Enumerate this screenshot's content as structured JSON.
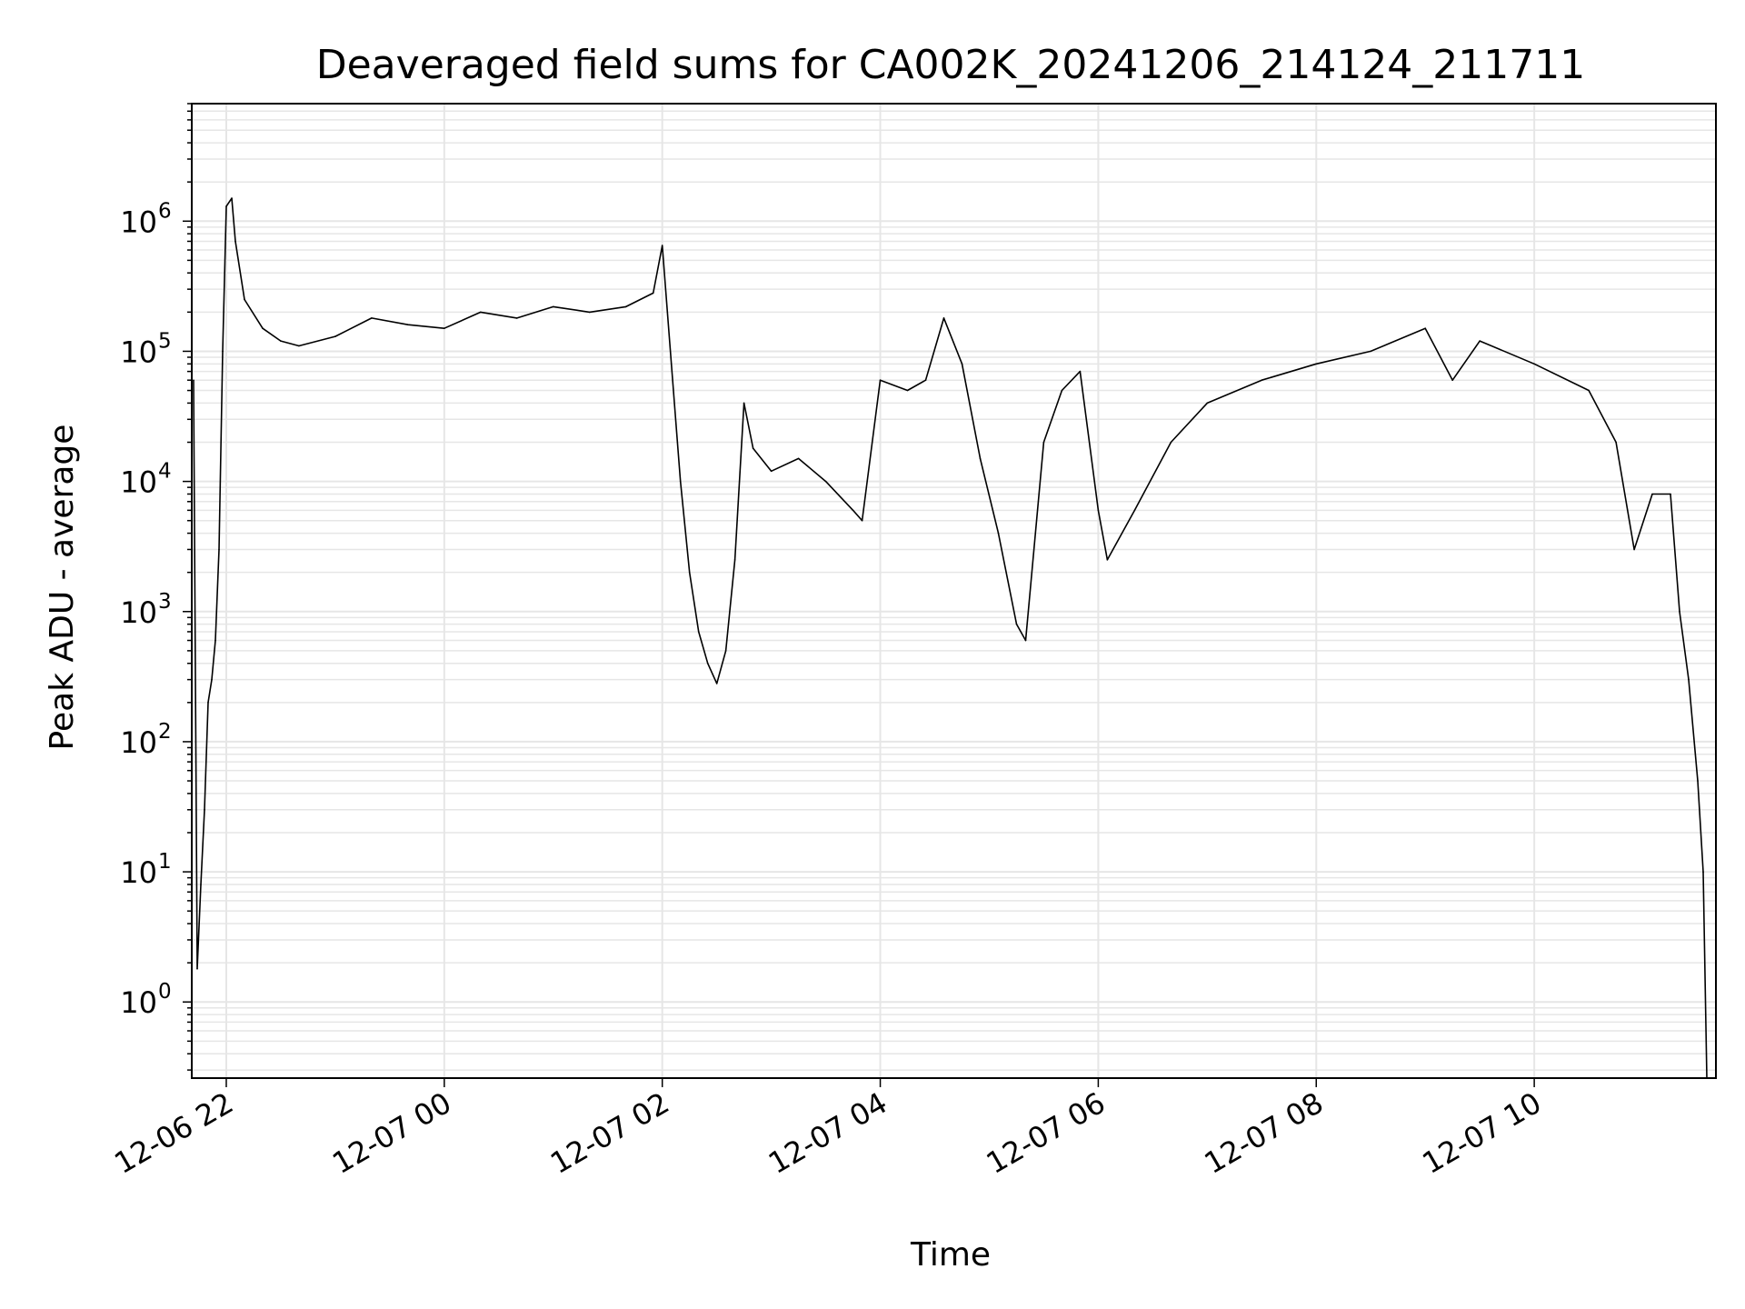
{
  "chart_data": {
    "type": "line",
    "title": "Deaveraged field sums for CA002K_20241206_214124_211711",
    "xlabel": "Time",
    "ylabel": "Peak ADU - average",
    "y_scale": "log",
    "ylim": [
      0.26,
      8000000
    ],
    "xlim": [
      "2024-12-06 21:41",
      "2024-12-07 11:40"
    ],
    "grid": true,
    "x_ticks": [
      "2024-12-06 22:00",
      "2024-12-07 00:00",
      "2024-12-07 02:00",
      "2024-12-07 04:00",
      "2024-12-07 06:00",
      "2024-12-07 08:00",
      "2024-12-07 10:00"
    ],
    "x_tick_labels": [
      "12-06 22",
      "12-07 00",
      "12-07 02",
      "12-07 04",
      "12-07 06",
      "12-07 08",
      "12-07 10"
    ],
    "y_ticks": [
      1,
      10,
      100,
      1000,
      10000,
      100000,
      1000000
    ],
    "y_tick_labels": [
      {
        "base": "10",
        "exp": "0"
      },
      {
        "base": "10",
        "exp": "1"
      },
      {
        "base": "10",
        "exp": "2"
      },
      {
        "base": "10",
        "exp": "3"
      },
      {
        "base": "10",
        "exp": "4"
      },
      {
        "base": "10",
        "exp": "5"
      },
      {
        "base": "10",
        "exp": "6"
      }
    ],
    "series": [
      {
        "color": "#000000",
        "x": [
          "2024-12-06 21:42",
          "2024-12-06 21:44",
          "2024-12-06 21:46",
          "2024-12-06 21:48",
          "2024-12-06 21:50",
          "2024-12-06 21:52",
          "2024-12-06 21:54",
          "2024-12-06 21:56",
          "2024-12-06 21:58",
          "2024-12-06 22:00",
          "2024-12-06 22:03",
          "2024-12-06 22:05",
          "2024-12-06 22:10",
          "2024-12-06 22:20",
          "2024-12-06 22:30",
          "2024-12-06 22:40",
          "2024-12-06 23:00",
          "2024-12-06 23:20",
          "2024-12-06 23:40",
          "2024-12-07 00:00",
          "2024-12-07 00:20",
          "2024-12-07 00:40",
          "2024-12-07 01:00",
          "2024-12-07 01:20",
          "2024-12-07 01:40",
          "2024-12-07 01:55",
          "2024-12-07 02:00",
          "2024-12-07 02:05",
          "2024-12-07 02:10",
          "2024-12-07 02:15",
          "2024-12-07 02:20",
          "2024-12-07 02:25",
          "2024-12-07 02:30",
          "2024-12-07 02:35",
          "2024-12-07 02:40",
          "2024-12-07 02:45",
          "2024-12-07 02:50",
          "2024-12-07 03:00",
          "2024-12-07 03:15",
          "2024-12-07 03:30",
          "2024-12-07 03:45",
          "2024-12-07 03:50",
          "2024-12-07 04:00",
          "2024-12-07 04:15",
          "2024-12-07 04:25",
          "2024-12-07 04:35",
          "2024-12-07 04:45",
          "2024-12-07 04:55",
          "2024-12-07 05:05",
          "2024-12-07 05:15",
          "2024-12-07 05:20",
          "2024-12-07 05:30",
          "2024-12-07 05:40",
          "2024-12-07 05:50",
          "2024-12-07 06:00",
          "2024-12-07 06:05",
          "2024-12-07 06:20",
          "2024-12-07 06:40",
          "2024-12-07 07:00",
          "2024-12-07 07:30",
          "2024-12-07 08:00",
          "2024-12-07 08:30",
          "2024-12-07 09:00",
          "2024-12-07 09:15",
          "2024-12-07 09:30",
          "2024-12-07 10:00",
          "2024-12-07 10:30",
          "2024-12-07 10:45",
          "2024-12-07 10:55",
          "2024-12-07 11:05",
          "2024-12-07 11:15",
          "2024-12-07 11:20",
          "2024-12-07 11:25",
          "2024-12-07 11:30",
          "2024-12-07 11:33",
          "2024-12-07 11:35"
        ],
        "values": [
          60000,
          1.8,
          8,
          30,
          200,
          300,
          600,
          3000,
          100000,
          1300000,
          1500000,
          700000,
          250000,
          150000,
          120000,
          110000,
          130000,
          180000,
          160000,
          150000,
          200000,
          180000,
          220000,
          200000,
          220000,
          280000,
          650000,
          80000,
          10000,
          2000,
          700,
          400,
          280,
          500,
          2500,
          40000,
          18000,
          12000,
          15000,
          10000,
          6000,
          5000,
          60000,
          50000,
          60000,
          180000,
          80000,
          15000,
          4000,
          800,
          600,
          20000,
          50000,
          70000,
          6000,
          2500,
          6000,
          20000,
          40000,
          60000,
          80000,
          100000,
          150000,
          60000,
          120000,
          80000,
          50000,
          20000,
          3000,
          8000,
          8000,
          1000,
          300,
          50,
          10,
          0.26
        ]
      }
    ]
  }
}
